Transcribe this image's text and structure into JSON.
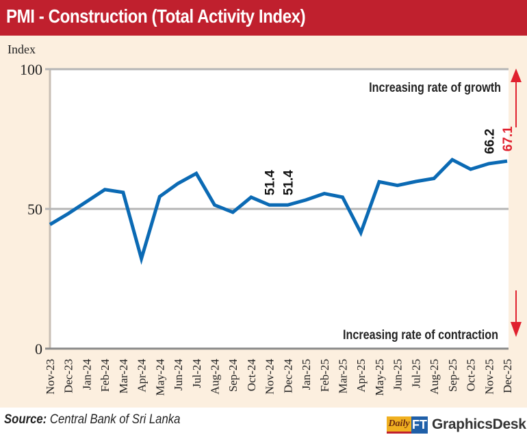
{
  "header": {
    "title": "PMI - Construction (Total Activity Index)"
  },
  "footer": {
    "source_label": "Source:",
    "source_text": "Central Bank of Sri Lanka",
    "logo_daily": "Daily",
    "logo_ft": "FT",
    "logo_desk": "GraphicsDesk"
  },
  "colors": {
    "title_bg": "#c0202e",
    "panel_bg": "#fcefdf",
    "line": "#0b6ab4",
    "arrow": "#e0202e",
    "highlight_label": "#e0202e",
    "gridline": "#aaaaaa"
  },
  "chart_data": {
    "type": "line",
    "title": "PMI - Construction (Total Activity Index)",
    "xlabel": "",
    "ylabel": "Index",
    "ylim": [
      0,
      100
    ],
    "yticks": [
      0,
      50,
      100
    ],
    "grid": "horizontal at 50 and 100",
    "categories": [
      "Nov-23",
      "Dec-23",
      "Jan-24",
      "Feb-24",
      "Mar-24",
      "Apr-24",
      "May-24",
      "Jun-24",
      "Jul-24",
      "Aug-24",
      "Sep-24",
      "Oct-24",
      "Nov-24",
      "Dec-24",
      "Jan-25",
      "Feb-25",
      "Mar-25",
      "Apr-25",
      "May-25",
      "Jun-25",
      "Jul-25",
      "Aug-25",
      "Sep-25",
      "Oct-25",
      "Nov-25",
      "Dec-25"
    ],
    "series": [
      {
        "name": "Total Activity Index",
        "values": [
          44.4,
          48.3,
          52.6,
          56.9,
          55.9,
          32.2,
          54.4,
          59.1,
          62.7,
          51.4,
          48.8,
          54.2,
          51.4,
          51.4,
          53.2,
          55.5,
          54.2,
          41.5,
          59.7,
          58.4,
          59.8,
          60.9,
          67.6,
          64.2,
          66.2,
          67.1
        ]
      }
    ],
    "data_labels": [
      {
        "category": "Nov-24",
        "text": "51.4",
        "color": "black"
      },
      {
        "category": "Dec-24",
        "text": "51.4",
        "color": "black"
      },
      {
        "category": "Nov-25",
        "text": "66.2",
        "color": "black"
      },
      {
        "category": "Dec-25",
        "text": "67.1",
        "color": "red"
      }
    ],
    "annotations": [
      {
        "text": "Increasing rate of growth",
        "arrow": "up"
      },
      {
        "text": "Increasing rate of contraction",
        "arrow": "down"
      }
    ],
    "legend": "none"
  }
}
